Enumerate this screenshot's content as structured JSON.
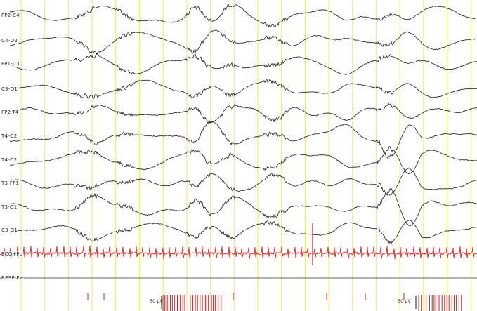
{
  "montage": {
    "channels": [
      {
        "label": "FP2-C4"
      },
      {
        "label": "C4-O2"
      },
      {
        "label": "FP1-C3"
      },
      {
        "label": "C3-O1"
      },
      {
        "label": "FP2-T4"
      },
      {
        "label": "T4-O2"
      },
      {
        "label": "T4-O2"
      },
      {
        "label": "T3-FP1"
      },
      {
        "label": "T3-O1"
      },
      {
        "label": "C3-O1"
      }
    ],
    "ecg_channel": {
      "label": "ECG+Fp"
    },
    "resp_channel": {
      "label": "RESP-Fw"
    }
  },
  "scale_marks": [
    {
      "label": "50 µV"
    },
    {
      "label": "50 µV"
    }
  ],
  "colors": {
    "background": "#ffffff",
    "time_grid": "#f2ee6a",
    "eeg_trace": "#1a1a1a",
    "ecg_trace": "#dd1f1f",
    "marker": "#cc2222"
  }
}
